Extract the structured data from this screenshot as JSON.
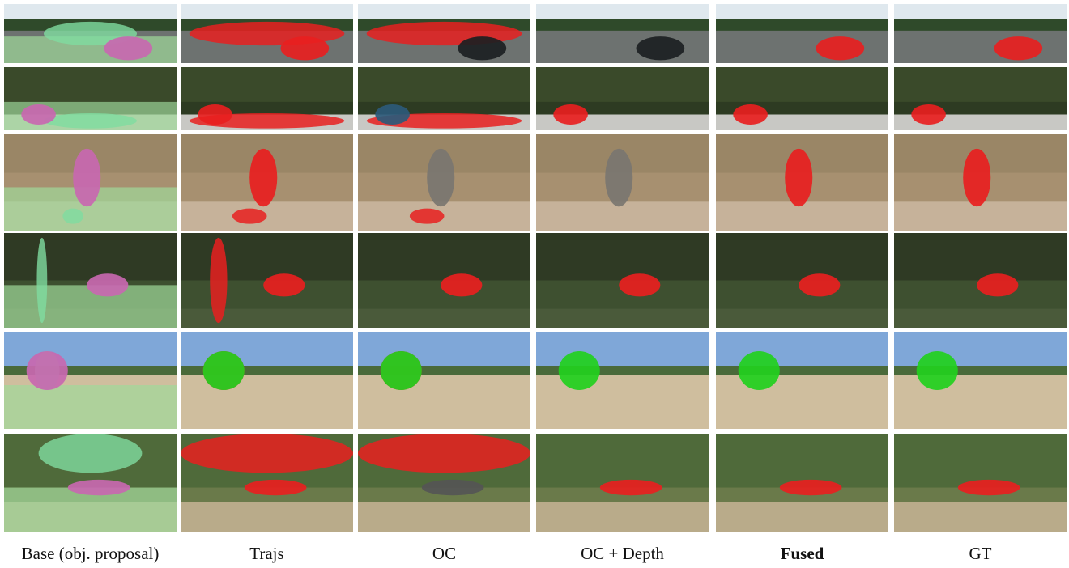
{
  "columns": [
    "Base (obj. proposal)",
    "Trajs",
    "OC",
    "OC + Depth",
    "Fused",
    "GT"
  ],
  "bold_column": 4
}
